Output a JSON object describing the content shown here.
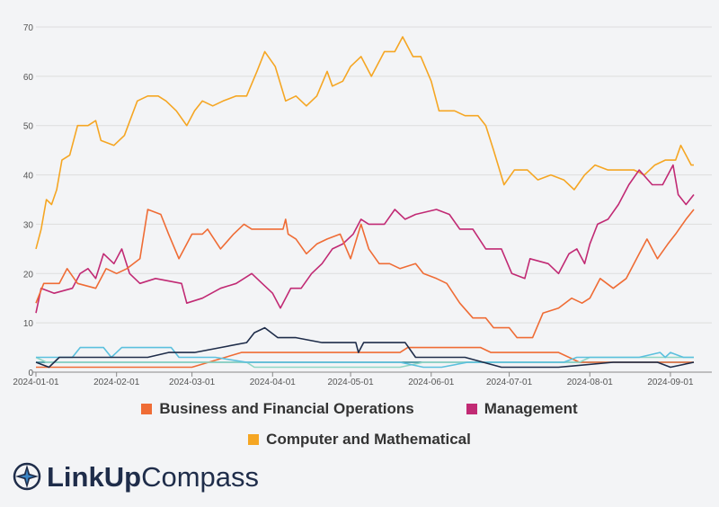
{
  "chart_data": {
    "type": "line",
    "title": "",
    "xlabel": "",
    "ylabel": "",
    "x_range": [
      "2024-01-01",
      "2024-09-10"
    ],
    "ylim": [
      0,
      70
    ],
    "y_ticks": [
      0,
      10,
      20,
      30,
      40,
      50,
      60,
      70
    ],
    "x_ticks": [
      "2024-01-01",
      "2024-02-01",
      "2024-03-01",
      "2024-04-01",
      "2024-05-01",
      "2024-06-01",
      "2024-07-01",
      "2024-08-01",
      "2024-09-01"
    ],
    "grid": "horizontal",
    "legend_position": "bottom",
    "series": [
      {
        "name": "Business and Financial Operations",
        "color": "#ef6c35",
        "points": [
          [
            "2024-01-01",
            14
          ],
          [
            "2024-01-04",
            18
          ],
          [
            "2024-01-10",
            18
          ],
          [
            "2024-01-13",
            21
          ],
          [
            "2024-01-17",
            18
          ],
          [
            "2024-01-24",
            17
          ],
          [
            "2024-01-28",
            21
          ],
          [
            "2024-02-01",
            20
          ],
          [
            "2024-02-05",
            21
          ],
          [
            "2024-02-10",
            23
          ],
          [
            "2024-02-13",
            33
          ],
          [
            "2024-02-18",
            32
          ],
          [
            "2024-02-21",
            28
          ],
          [
            "2024-02-25",
            23
          ],
          [
            "2024-03-01",
            28
          ],
          [
            "2024-03-05",
            28
          ],
          [
            "2024-03-07",
            29
          ],
          [
            "2024-03-12",
            25
          ],
          [
            "2024-03-17",
            28
          ],
          [
            "2024-03-21",
            30
          ],
          [
            "2024-03-24",
            29
          ],
          [
            "2024-04-01",
            29
          ],
          [
            "2024-04-05",
            29
          ],
          [
            "2024-04-06",
            31
          ],
          [
            "2024-04-07",
            28
          ],
          [
            "2024-04-10",
            27
          ],
          [
            "2024-04-14",
            24
          ],
          [
            "2024-04-18",
            26
          ],
          [
            "2024-04-22",
            27
          ],
          [
            "2024-04-27",
            28
          ],
          [
            "2024-05-01",
            23
          ],
          [
            "2024-05-05",
            30
          ],
          [
            "2024-05-08",
            25
          ],
          [
            "2024-05-12",
            22
          ],
          [
            "2024-05-16",
            22
          ],
          [
            "2024-05-20",
            21
          ],
          [
            "2024-05-26",
            22
          ],
          [
            "2024-05-29",
            20
          ],
          [
            "2024-06-03",
            19
          ],
          [
            "2024-06-07",
            18
          ],
          [
            "2024-06-12",
            14
          ],
          [
            "2024-06-17",
            11
          ],
          [
            "2024-06-22",
            11
          ],
          [
            "2024-06-25",
            9
          ],
          [
            "2024-07-01",
            9
          ],
          [
            "2024-07-04",
            7
          ],
          [
            "2024-07-10",
            7
          ],
          [
            "2024-07-14",
            12
          ],
          [
            "2024-07-20",
            13
          ],
          [
            "2024-07-25",
            15
          ],
          [
            "2024-07-29",
            14
          ],
          [
            "2024-08-01",
            15
          ],
          [
            "2024-08-05",
            19
          ],
          [
            "2024-08-10",
            17
          ],
          [
            "2024-08-15",
            19
          ],
          [
            "2024-08-20",
            24
          ],
          [
            "2024-08-23",
            27
          ],
          [
            "2024-08-27",
            23
          ],
          [
            "2024-08-31",
            26
          ],
          [
            "2024-09-03",
            28
          ],
          [
            "2024-09-07",
            31
          ],
          [
            "2024-09-10",
            33
          ]
        ]
      },
      {
        "name": "Management",
        "color": "#c12a74",
        "points": [
          [
            "2024-01-01",
            12
          ],
          [
            "2024-01-03",
            17
          ],
          [
            "2024-01-08",
            16
          ],
          [
            "2024-01-15",
            17
          ],
          [
            "2024-01-18",
            20
          ],
          [
            "2024-01-21",
            21
          ],
          [
            "2024-01-24",
            19
          ],
          [
            "2024-01-27",
            24
          ],
          [
            "2024-01-31",
            22
          ],
          [
            "2024-02-03",
            25
          ],
          [
            "2024-02-06",
            20
          ],
          [
            "2024-02-10",
            18
          ],
          [
            "2024-02-16",
            19
          ],
          [
            "2024-02-26",
            18
          ],
          [
            "2024-02-28",
            14
          ],
          [
            "2024-03-05",
            15
          ],
          [
            "2024-03-12",
            17
          ],
          [
            "2024-03-18",
            18
          ],
          [
            "2024-03-24",
            20
          ],
          [
            "2024-03-28",
            18
          ],
          [
            "2024-04-01",
            16
          ],
          [
            "2024-04-04",
            13
          ],
          [
            "2024-04-08",
            17
          ],
          [
            "2024-04-12",
            17
          ],
          [
            "2024-04-16",
            20
          ],
          [
            "2024-04-20",
            22
          ],
          [
            "2024-04-24",
            25
          ],
          [
            "2024-04-28",
            26
          ],
          [
            "2024-05-02",
            28
          ],
          [
            "2024-05-05",
            31
          ],
          [
            "2024-05-08",
            30
          ],
          [
            "2024-05-14",
            30
          ],
          [
            "2024-05-18",
            33
          ],
          [
            "2024-05-22",
            31
          ],
          [
            "2024-05-26",
            32
          ],
          [
            "2024-06-03",
            33
          ],
          [
            "2024-06-08",
            32
          ],
          [
            "2024-06-12",
            29
          ],
          [
            "2024-06-17",
            29
          ],
          [
            "2024-06-22",
            25
          ],
          [
            "2024-06-28",
            25
          ],
          [
            "2024-07-02",
            20
          ],
          [
            "2024-07-07",
            19
          ],
          [
            "2024-07-09",
            23
          ],
          [
            "2024-07-16",
            22
          ],
          [
            "2024-07-20",
            20
          ],
          [
            "2024-07-24",
            24
          ],
          [
            "2024-07-27",
            25
          ],
          [
            "2024-07-30",
            22
          ],
          [
            "2024-08-01",
            26
          ],
          [
            "2024-08-04",
            30
          ],
          [
            "2024-08-08",
            31
          ],
          [
            "2024-08-12",
            34
          ],
          [
            "2024-08-16",
            38
          ],
          [
            "2024-08-20",
            41
          ],
          [
            "2024-08-25",
            38
          ],
          [
            "2024-08-29",
            38
          ],
          [
            "2024-09-02",
            42
          ],
          [
            "2024-09-04",
            36
          ],
          [
            "2024-09-07",
            34
          ],
          [
            "2024-09-10",
            36
          ]
        ]
      },
      {
        "name": "Computer and Mathematical",
        "color": "#f5a623",
        "points": [
          [
            "2024-01-01",
            25
          ],
          [
            "2024-01-03",
            29
          ],
          [
            "2024-01-05",
            35
          ],
          [
            "2024-01-07",
            34
          ],
          [
            "2024-01-09",
            37
          ],
          [
            "2024-01-11",
            43
          ],
          [
            "2024-01-14",
            44
          ],
          [
            "2024-01-17",
            50
          ],
          [
            "2024-01-21",
            50
          ],
          [
            "2024-01-24",
            51
          ],
          [
            "2024-01-26",
            47
          ],
          [
            "2024-01-31",
            46
          ],
          [
            "2024-02-04",
            48
          ],
          [
            "2024-02-09",
            55
          ],
          [
            "2024-02-13",
            56
          ],
          [
            "2024-02-17",
            56
          ],
          [
            "2024-02-20",
            55
          ],
          [
            "2024-02-24",
            53
          ],
          [
            "2024-02-28",
            50
          ],
          [
            "2024-03-02",
            53
          ],
          [
            "2024-03-05",
            55
          ],
          [
            "2024-03-09",
            54
          ],
          [
            "2024-03-13",
            55
          ],
          [
            "2024-03-18",
            56
          ],
          [
            "2024-03-22",
            56
          ],
          [
            "2024-03-26",
            61
          ],
          [
            "2024-03-29",
            65
          ],
          [
            "2024-04-02",
            62
          ],
          [
            "2024-04-06",
            55
          ],
          [
            "2024-04-10",
            56
          ],
          [
            "2024-04-14",
            54
          ],
          [
            "2024-04-18",
            56
          ],
          [
            "2024-04-22",
            61
          ],
          [
            "2024-04-24",
            58
          ],
          [
            "2024-04-28",
            59
          ],
          [
            "2024-05-01",
            62
          ],
          [
            "2024-05-05",
            64
          ],
          [
            "2024-05-09",
            60
          ],
          [
            "2024-05-14",
            65
          ],
          [
            "2024-05-18",
            65
          ],
          [
            "2024-05-21",
            68
          ],
          [
            "2024-05-25",
            64
          ],
          [
            "2024-05-28",
            64
          ],
          [
            "2024-06-01",
            59
          ],
          [
            "2024-06-04",
            53
          ],
          [
            "2024-06-10",
            53
          ],
          [
            "2024-06-14",
            52
          ],
          [
            "2024-06-19",
            52
          ],
          [
            "2024-06-22",
            50
          ],
          [
            "2024-06-25",
            45
          ],
          [
            "2024-06-29",
            38
          ],
          [
            "2024-07-03",
            41
          ],
          [
            "2024-07-08",
            41
          ],
          [
            "2024-07-12",
            39
          ],
          [
            "2024-07-17",
            40
          ],
          [
            "2024-07-22",
            39
          ],
          [
            "2024-07-26",
            37
          ],
          [
            "2024-07-30",
            40
          ],
          [
            "2024-08-03",
            42
          ],
          [
            "2024-08-08",
            41
          ],
          [
            "2024-08-13",
            41
          ],
          [
            "2024-08-18",
            41
          ],
          [
            "2024-08-22",
            40
          ],
          [
            "2024-08-26",
            42
          ],
          [
            "2024-08-30",
            43
          ],
          [
            "2024-09-03",
            43
          ],
          [
            "2024-09-05",
            46
          ],
          [
            "2024-09-07",
            44
          ],
          [
            "2024-09-09",
            42
          ],
          [
            "2024-09-10",
            42
          ]
        ]
      },
      {
        "color": "#1f2d4a",
        "points": [
          [
            "2024-01-01",
            2
          ],
          [
            "2024-01-06",
            1
          ],
          [
            "2024-01-10",
            3
          ],
          [
            "2024-02-05",
            3
          ],
          [
            "2024-02-13",
            3
          ],
          [
            "2024-02-21",
            4
          ],
          [
            "2024-03-02",
            4
          ],
          [
            "2024-03-12",
            5
          ],
          [
            "2024-03-22",
            6
          ],
          [
            "2024-03-25",
            8
          ],
          [
            "2024-03-29",
            9
          ],
          [
            "2024-04-03",
            7
          ],
          [
            "2024-04-10",
            7
          ],
          [
            "2024-04-20",
            6
          ],
          [
            "2024-05-03",
            6
          ],
          [
            "2024-05-04",
            4
          ],
          [
            "2024-05-06",
            6
          ],
          [
            "2024-05-22",
            6
          ],
          [
            "2024-05-26",
            3
          ],
          [
            "2024-06-04",
            3
          ],
          [
            "2024-06-14",
            3
          ],
          [
            "2024-06-28",
            1
          ],
          [
            "2024-07-20",
            1
          ],
          [
            "2024-08-10",
            2
          ],
          [
            "2024-08-27",
            2
          ],
          [
            "2024-09-01",
            1
          ],
          [
            "2024-09-10",
            2
          ]
        ]
      },
      {
        "color": "#5bc0de",
        "points": [
          [
            "2024-01-01",
            3
          ],
          [
            "2024-01-15",
            3
          ],
          [
            "2024-01-18",
            5
          ],
          [
            "2024-01-27",
            5
          ],
          [
            "2024-01-30",
            3
          ],
          [
            "2024-02-03",
            5
          ],
          [
            "2024-02-22",
            5
          ],
          [
            "2024-02-25",
            3
          ],
          [
            "2024-03-10",
            3
          ],
          [
            "2024-03-22",
            2
          ],
          [
            "2024-05-20",
            2
          ],
          [
            "2024-05-29",
            1
          ],
          [
            "2024-06-05",
            1
          ],
          [
            "2024-06-15",
            2
          ],
          [
            "2024-07-22",
            2
          ],
          [
            "2024-07-27",
            3
          ],
          [
            "2024-08-20",
            3
          ],
          [
            "2024-08-28",
            4
          ],
          [
            "2024-08-30",
            3
          ],
          [
            "2024-09-01",
            4
          ],
          [
            "2024-09-06",
            3
          ],
          [
            "2024-09-10",
            3
          ]
        ]
      },
      {
        "color": "#8fd7c5",
        "points": [
          [
            "2024-01-01",
            3
          ],
          [
            "2024-01-05",
            2
          ],
          [
            "2024-02-20",
            2
          ],
          [
            "2024-03-05",
            2
          ],
          [
            "2024-03-09",
            2
          ],
          [
            "2024-03-22",
            2
          ],
          [
            "2024-03-25",
            1
          ],
          [
            "2024-05-20",
            1
          ],
          [
            "2024-05-29",
            2
          ],
          [
            "2024-07-28",
            2
          ],
          [
            "2024-08-01",
            3
          ],
          [
            "2024-09-10",
            3
          ]
        ]
      },
      {
        "color": "#ef6c35",
        "points": [
          [
            "2024-01-01",
            1
          ],
          [
            "2024-02-20",
            1
          ],
          [
            "2024-03-01",
            1
          ],
          [
            "2024-03-20",
            4
          ],
          [
            "2024-05-20",
            4
          ],
          [
            "2024-05-23",
            5
          ],
          [
            "2024-06-20",
            5
          ],
          [
            "2024-06-24",
            4
          ],
          [
            "2024-07-20",
            4
          ],
          [
            "2024-07-28",
            2
          ],
          [
            "2024-09-10",
            2
          ]
        ]
      },
      {
        "color": "#2d8a96",
        "points": [
          [
            "2024-01-01",
            2
          ],
          [
            "2024-07-01",
            2
          ],
          [
            "2024-07-28",
            2
          ],
          [
            "2024-09-10",
            2
          ]
        ]
      }
    ],
    "legend": [
      {
        "label": "Business and Financial Operations",
        "color": "#ef6c35"
      },
      {
        "label": "Management",
        "color": "#c12a74"
      },
      {
        "label": "Computer and Mathematical",
        "color": "#f5a623"
      }
    ]
  },
  "logo": {
    "bold": "LinkUp",
    "light": "Compass",
    "icon": "compass-star-icon"
  }
}
